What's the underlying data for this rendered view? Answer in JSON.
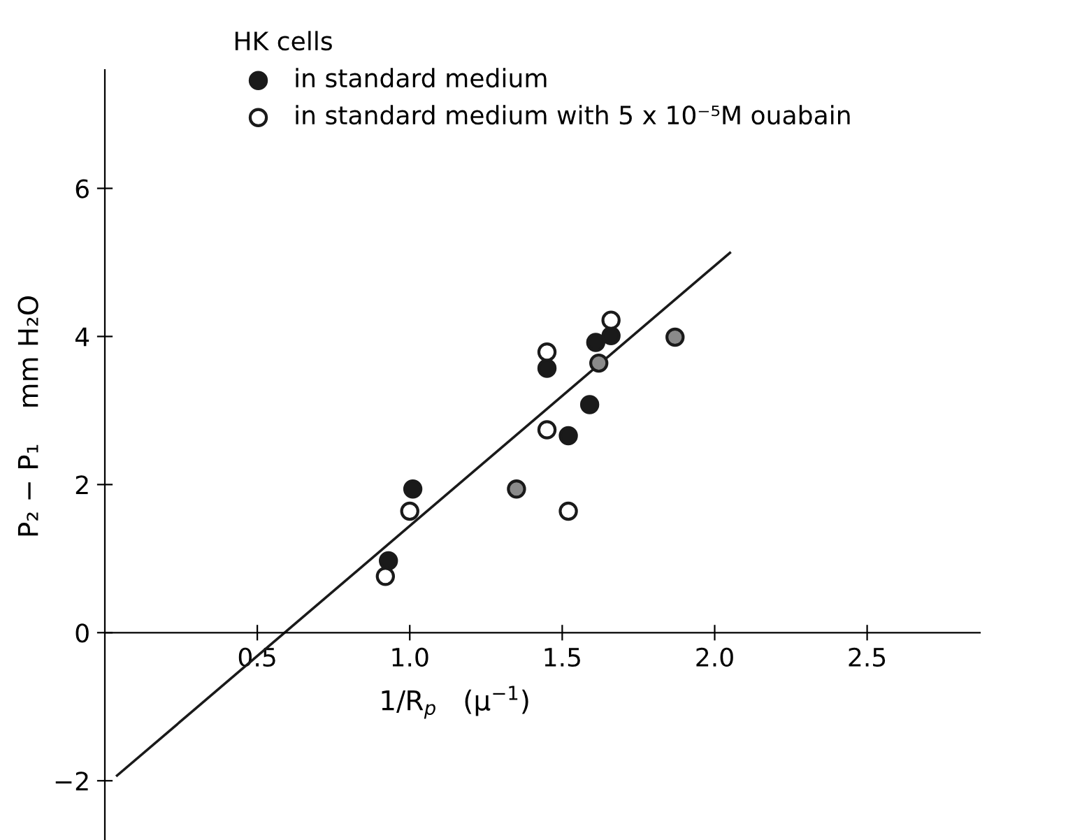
{
  "chart_data": {
    "type": "scatter",
    "xlabel": "1/R$_{p}$   (μ$^{−1}$)",
    "ylabel": "P₂ − P₁    mm H₂O",
    "legend_title": "HK cells",
    "xlim": [
      0,
      2.87
    ],
    "ylim": [
      -2.8,
      7.6
    ],
    "xticks": [
      {
        "value": 0.5,
        "label": "0.5"
      },
      {
        "value": 1.0,
        "label": "1.0"
      },
      {
        "value": 1.5,
        "label": "1.5"
      },
      {
        "value": 2.0,
        "label": "2.0"
      },
      {
        "value": 2.5,
        "label": "2.5"
      }
    ],
    "yticks": [
      -2,
      0,
      2,
      4,
      6
    ],
    "grid": false,
    "legend": "top",
    "marker": "circle",
    "series": [
      {
        "name": "in standard medium",
        "color": "#1a1a1a",
        "x": [
          1.01,
          0.93,
          1.45,
          1.61,
          1.66,
          1.59,
          1.52
        ],
        "values": [
          1.94,
          0.97,
          3.57,
          3.92,
          4.01,
          3.08,
          2.66
        ]
      },
      {
        "name": "in standard medium with 5 x 10⁻⁵M ouabain",
        "color": "#ffffff",
        "x": [
          1.0,
          0.92,
          1.45,
          1.66,
          1.45,
          1.52
        ],
        "values": [
          1.64,
          0.76,
          3.79,
          4.22,
          2.74,
          1.64
        ]
      },
      {
        "color": "#8a8a8a",
        "x": [
          1.35,
          1.87,
          1.62
        ],
        "values": [
          1.94,
          3.99,
          3.64
        ]
      },
      {
        "type": "line",
        "color": "#1a1a1a",
        "marker": "none",
        "line_style": "solid",
        "x": [
          0.04,
          2.05
        ],
        "values": [
          -1.93,
          5.13
        ]
      }
    ]
  }
}
